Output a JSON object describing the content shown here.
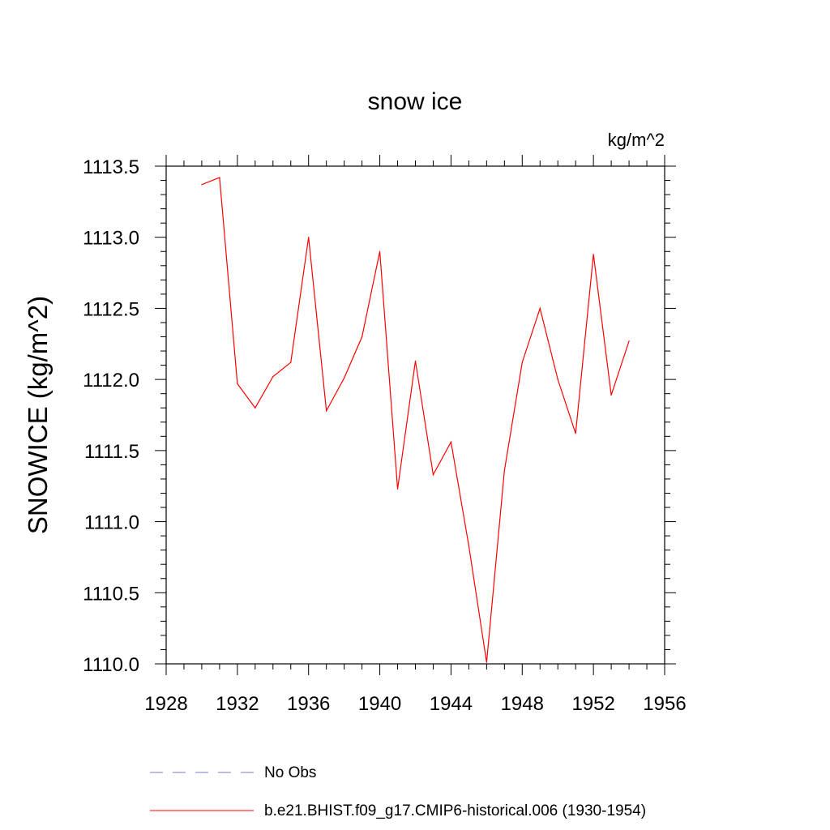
{
  "chart_data": {
    "type": "line",
    "title": "snow ice",
    "units_label": "kg/m^2",
    "xlabel": "",
    "ylabel": "SNOWICE  (kg/m^2)",
    "xlim": [
      1928,
      1956
    ],
    "ylim": [
      1110.0,
      1113.5
    ],
    "x_major_ticks": [
      1928,
      1932,
      1936,
      1940,
      1944,
      1948,
      1952,
      1956
    ],
    "x_tick_labels": [
      "1928",
      "1932",
      "1936",
      "1940",
      "1944",
      "1948",
      "1952",
      "1956"
    ],
    "y_major_ticks": [
      1110.0,
      1110.5,
      1111.0,
      1111.5,
      1112.0,
      1112.5,
      1113.0,
      1113.5
    ],
    "y_tick_labels": [
      "1110.0",
      "1110.5",
      "1111.0",
      "1111.5",
      "1112.0",
      "1112.5",
      "1113.0",
      "1113.5"
    ],
    "x_minor_step": 1,
    "y_minor_step": 0.1,
    "grid": false,
    "legend_position": "bottom",
    "series": [
      {
        "name": "b.e21.BHIST.f09_g17.CMIP6-historical.006 (1930-1954)",
        "color": "#ff0000",
        "style": "solid",
        "x": [
          1930,
          1931,
          1932,
          1933,
          1934,
          1935,
          1936,
          1937,
          1938,
          1939,
          1940,
          1941,
          1942,
          1943,
          1944,
          1945,
          1946,
          1947,
          1948,
          1949,
          1950,
          1951,
          1952,
          1953,
          1954
        ],
        "y": [
          1113.37,
          1113.42,
          1111.97,
          1111.8,
          1112.02,
          1112.12,
          1113.0,
          1111.78,
          1112.01,
          1112.3,
          1112.9,
          1111.23,
          1112.13,
          1111.33,
          1111.56,
          1110.83,
          1110.01,
          1111.36,
          1112.12,
          1112.5,
          1112.0,
          1111.62,
          1112.88,
          1111.89,
          1112.27
        ]
      }
    ],
    "legend": [
      {
        "label": "No Obs",
        "color": "#7b7bc9",
        "style": "dashed"
      },
      {
        "label": "b.e21.BHIST.f09_g17.CMIP6-historical.006 (1930-1954)",
        "color": "#ff0000",
        "style": "solid"
      }
    ]
  }
}
